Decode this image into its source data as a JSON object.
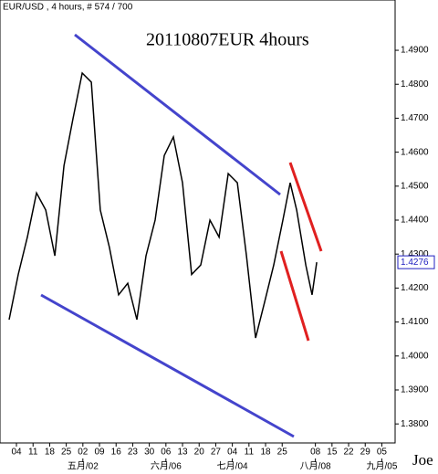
{
  "chart_data": {
    "type": "line",
    "title": "EUR/USD , 4 hours, # 574 / 700",
    "annotation": "20110807EUR 4hours",
    "signature": "Joe",
    "xlim": [
      -0.99,
      22.8
    ],
    "xticks": [
      {
        "value": 0,
        "label": "04"
      },
      {
        "value": 1,
        "label": "11"
      },
      {
        "value": 2,
        "label": "18"
      },
      {
        "value": 3,
        "label": "25"
      },
      {
        "value": 4,
        "label": "02"
      },
      {
        "value": 5,
        "label": "09"
      },
      {
        "value": 6,
        "label": "16"
      },
      {
        "value": 7,
        "label": "23"
      },
      {
        "value": 8,
        "label": "30"
      },
      {
        "value": 9,
        "label": "06"
      },
      {
        "value": 10,
        "label": "13"
      },
      {
        "value": 11,
        "label": "20"
      },
      {
        "value": 12,
        "label": "27"
      },
      {
        "value": 13,
        "label": "04"
      },
      {
        "value": 14,
        "label": "11"
      },
      {
        "value": 15,
        "label": "18"
      },
      {
        "value": 16,
        "label": "25"
      },
      {
        "value": 18,
        "label": "08"
      },
      {
        "value": 19,
        "label": "15"
      },
      {
        "value": 20,
        "label": "22"
      },
      {
        "value": 21,
        "label": "29"
      },
      {
        "value": 22,
        "label": "05"
      }
    ],
    "month_ticks": [
      {
        "value": 4,
        "label": "五月/02"
      },
      {
        "value": 9,
        "label": "六月/06"
      },
      {
        "value": 13,
        "label": "七月/04"
      },
      {
        "value": 18,
        "label": "八月/08"
      },
      {
        "value": 22,
        "label": "九月/05"
      }
    ],
    "ylim": [
      1.3744,
      1.5048
    ],
    "yticks": [
      {
        "value": 1.38,
        "label": "1.3800"
      },
      {
        "value": 1.39,
        "label": "1.3900"
      },
      {
        "value": 1.4,
        "label": "1.4000"
      },
      {
        "value": 1.41,
        "label": "1.4100"
      },
      {
        "value": 1.42,
        "label": "1.4200"
      },
      {
        "value": 1.43,
        "label": "1.4300"
      },
      {
        "value": 1.44,
        "label": "1.4400"
      },
      {
        "value": 1.45,
        "label": "1.4500"
      },
      {
        "value": 1.46,
        "label": "1.4600"
      },
      {
        "value": 1.47,
        "label": "1.4700"
      },
      {
        "value": 1.48,
        "label": "1.4800"
      },
      {
        "value": 1.49,
        "label": "1.4900"
      }
    ],
    "last_price": {
      "value": 1.4276,
      "label": "1.4276"
    },
    "series": [
      {
        "name": "EUR/USD",
        "color": "#000000",
        "x": [
          -0.44,
          0.11,
          0.66,
          1.21,
          1.76,
          2.31,
          2.86,
          3.41,
          3.96,
          4.51,
          4.78,
          5.05,
          5.6,
          6.15,
          6.7,
          7.25,
          7.8,
          8.35,
          8.9,
          9.45,
          10.0,
          10.55,
          11.1,
          11.65,
          12.2,
          12.75,
          13.3,
          13.85,
          14.4,
          14.95,
          15.49,
          16.04,
          16.48,
          16.87,
          17.42,
          17.8,
          18.08
        ],
        "values": [
          1.4107,
          1.424,
          1.435,
          1.448,
          1.443,
          1.4295,
          1.456,
          1.47,
          1.4833,
          1.4806,
          1.4617,
          1.443,
          1.432,
          1.418,
          1.4214,
          1.4107,
          1.4295,
          1.44,
          1.459,
          1.4645,
          1.451,
          1.424,
          1.4268,
          1.44,
          1.435,
          1.4537,
          1.451,
          1.4295,
          1.4053,
          1.416,
          1.4268,
          1.44,
          1.451,
          1.443,
          1.4268,
          1.418,
          1.4276
        ]
      }
    ]
  }
}
